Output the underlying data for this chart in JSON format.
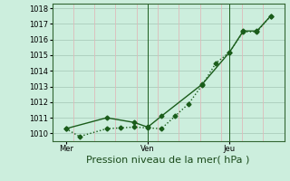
{
  "title": "",
  "xlabel": "Pression niveau de la mer( hPa )",
  "bg_color": "#cceedd",
  "grid_color_h": "#aaccbb",
  "grid_color_v": "#ddbbbb",
  "line_color": "#1a5c1a",
  "yticks": [
    1010,
    1011,
    1012,
    1013,
    1014,
    1015,
    1016,
    1017,
    1018
  ],
  "ylim": [
    1009.5,
    1018.3
  ],
  "xlim": [
    0,
    17
  ],
  "xtick_labels": [
    "Mer",
    "Ven",
    "Jeu"
  ],
  "xtick_positions": [
    1,
    7,
    13
  ],
  "vlines_green": [
    7,
    13
  ],
  "series1_x": [
    1,
    2,
    4,
    5,
    6,
    7,
    8,
    9,
    10,
    11,
    12,
    13,
    14,
    15,
    16
  ],
  "series1_y": [
    1010.3,
    1009.8,
    1010.3,
    1010.35,
    1010.4,
    1010.35,
    1010.3,
    1011.1,
    1011.9,
    1013.1,
    1014.5,
    1015.2,
    1016.5,
    1016.5,
    1017.5
  ],
  "series2_x": [
    1,
    4,
    6,
    7,
    8,
    11,
    13,
    14,
    15,
    16
  ],
  "series2_y": [
    1010.3,
    1011.0,
    1010.7,
    1010.4,
    1011.1,
    1013.15,
    1015.2,
    1016.55,
    1016.55,
    1017.5
  ],
  "marker": "D",
  "markersize": 2.5,
  "linewidth": 1.0,
  "fontsize_xlabel": 8,
  "fontsize_yticks": 6,
  "fontsize_xticks": 6
}
